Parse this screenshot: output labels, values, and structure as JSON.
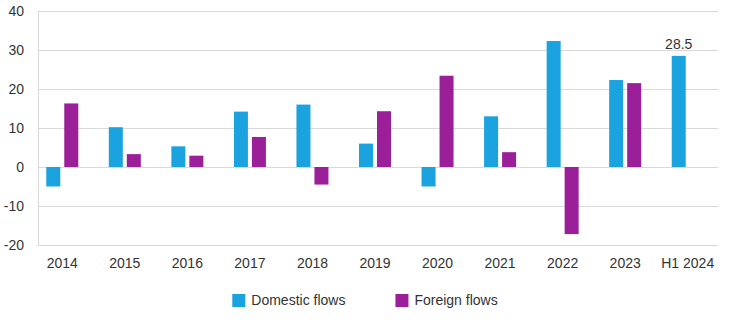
{
  "chart_data": {
    "type": "bar",
    "categories": [
      "2014",
      "2015",
      "2016",
      "2017",
      "2018",
      "2019",
      "2020",
      "2021",
      "2022",
      "2023",
      "H1 2024"
    ],
    "series": [
      {
        "name": "Domestic flows",
        "color": "#1aa3df",
        "values": [
          -5,
          10.2,
          5.3,
          14.2,
          16,
          6,
          -5,
          13,
          32.3,
          22.3,
          28.5
        ],
        "value_labels": [
          null,
          null,
          null,
          null,
          null,
          null,
          null,
          null,
          null,
          null,
          "28.5"
        ]
      },
      {
        "name": "Foreign flows",
        "color": "#9a1f98",
        "values": [
          16.3,
          3.3,
          2.9,
          7.7,
          -4.5,
          14.3,
          23.4,
          3.8,
          -17.2,
          21.5,
          null
        ]
      }
    ],
    "ylim": [
      -20,
      40
    ],
    "yticks": [
      -20,
      -10,
      0,
      10,
      20,
      30,
      40
    ],
    "grid": true,
    "legend": "bottom"
  }
}
